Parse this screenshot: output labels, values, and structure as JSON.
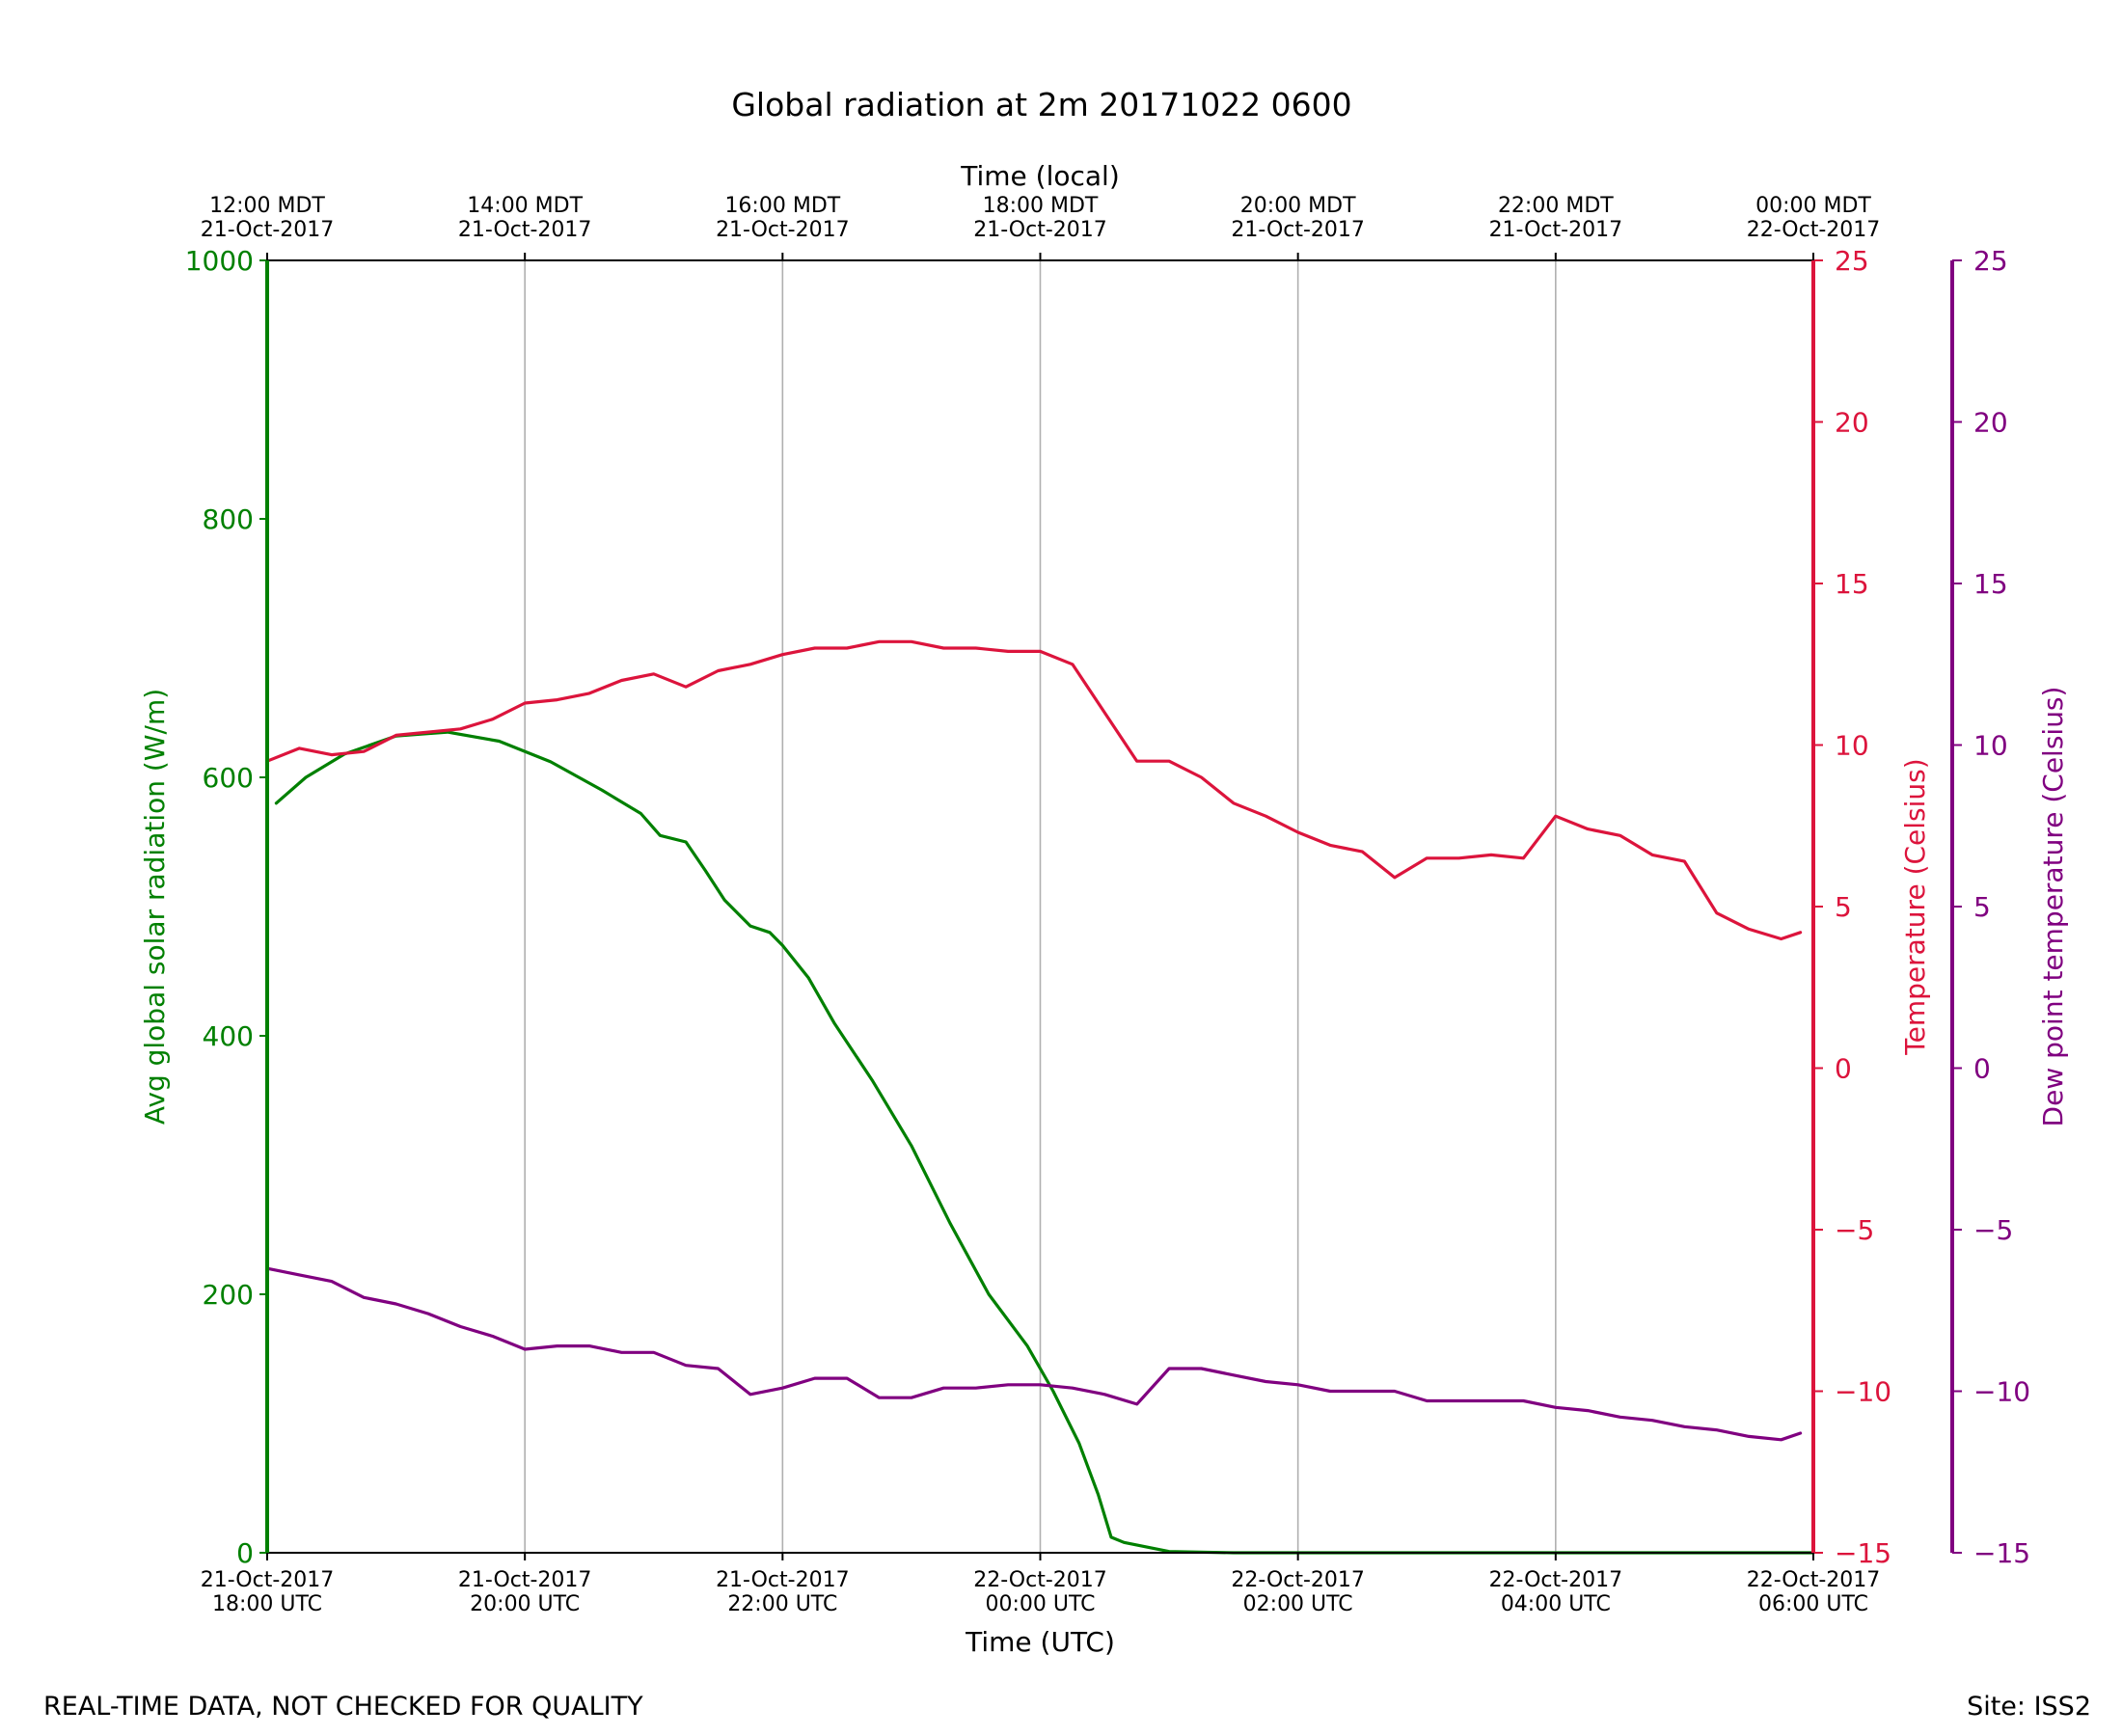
{
  "chart_data": {
    "type": "line",
    "title": "Global radiation at 2m 20171022 0600",
    "xlabel_bottom": "Time (UTC)",
    "xlabel_top": "Time (local)",
    "footer_left": "REAL-TIME DATA, NOT CHECKED FOR QUALITY",
    "footer_right": "Site: ISS2",
    "x_range_hours": [
      0,
      12
    ],
    "x_ticks_bottom": [
      {
        "hour": 0,
        "line1": "21-Oct-2017",
        "line2": "18:00 UTC"
      },
      {
        "hour": 2,
        "line1": "21-Oct-2017",
        "line2": "20:00 UTC"
      },
      {
        "hour": 4,
        "line1": "21-Oct-2017",
        "line2": "22:00 UTC"
      },
      {
        "hour": 6,
        "line1": "22-Oct-2017",
        "line2": "00:00 UTC"
      },
      {
        "hour": 8,
        "line1": "22-Oct-2017",
        "line2": "02:00 UTC"
      },
      {
        "hour": 10,
        "line1": "22-Oct-2017",
        "line2": "04:00 UTC"
      },
      {
        "hour": 12,
        "line1": "22-Oct-2017",
        "line2": "06:00 UTC"
      }
    ],
    "x_ticks_top": [
      {
        "hour": 0,
        "line1": "12:00 MDT",
        "line2": "21-Oct-2017"
      },
      {
        "hour": 2,
        "line1": "14:00 MDT",
        "line2": "21-Oct-2017"
      },
      {
        "hour": 4,
        "line1": "16:00 MDT",
        "line2": "21-Oct-2017"
      },
      {
        "hour": 6,
        "line1": "18:00 MDT",
        "line2": "21-Oct-2017"
      },
      {
        "hour": 8,
        "line1": "20:00 MDT",
        "line2": "21-Oct-2017"
      },
      {
        "hour": 10,
        "line1": "22:00 MDT",
        "line2": "21-Oct-2017"
      },
      {
        "hour": 12,
        "line1": "00:00 MDT",
        "line2": "22-Oct-2017"
      }
    ],
    "grid": "vertical",
    "axes": {
      "radiation": {
        "label": "Avg global solar radiation (W/m)",
        "range": [
          0,
          1000
        ],
        "ticks": [
          0,
          200,
          400,
          600,
          800,
          1000
        ],
        "color": "#008000",
        "side": "left"
      },
      "temperature": {
        "label": "Temperature (Celsius)",
        "range": [
          -15,
          25
        ],
        "ticks": [
          -15,
          -10,
          -5,
          0,
          5,
          10,
          15,
          20,
          25
        ],
        "color": "#dc143c",
        "side": "right"
      },
      "dewpoint": {
        "label": "Dew point temperature (Celsius)",
        "range": [
          -15,
          25
        ],
        "ticks": [
          -15,
          -10,
          -5,
          0,
          5,
          10,
          15,
          20,
          25
        ],
        "color": "#800080",
        "side": "right-outer"
      }
    },
    "tick_display": {
      "-15": "−15",
      "-10": "−10",
      "-5": "−5",
      "0": "0",
      "5": "5",
      "10": "10",
      "15": "15",
      "20": "20",
      "25": "25",
      "200": "200",
      "400": "400",
      "600": "600",
      "800": "800",
      "1000": "1000"
    },
    "series": [
      {
        "name": "Avg global solar radiation",
        "axis": "radiation",
        "color": "#008000",
        "x": [
          0.07,
          0.3,
          0.6,
          1.0,
          1.4,
          1.8,
          2.2,
          2.6,
          2.9,
          3.05,
          3.25,
          3.4,
          3.55,
          3.75,
          3.9,
          4.0,
          4.2,
          4.4,
          4.7,
          5.0,
          5.3,
          5.6,
          5.9,
          6.1,
          6.3,
          6.45,
          6.55,
          6.65,
          7.0,
          7.5,
          8.0,
          9.0,
          10.0,
          11.0,
          12.0
        ],
        "y": [
          580,
          600,
          618,
          632,
          635,
          628,
          612,
          590,
          572,
          555,
          550,
          528,
          505,
          485,
          480,
          470,
          445,
          410,
          365,
          315,
          255,
          200,
          160,
          125,
          85,
          45,
          12,
          8,
          1,
          0,
          0,
          0,
          0,
          0,
          0
        ]
      },
      {
        "name": "Temperature",
        "axis": "temperature",
        "color": "#dc143c",
        "x": [
          0.0,
          0.25,
          0.5,
          0.75,
          1.0,
          1.25,
          1.5,
          1.75,
          2.0,
          2.25,
          2.5,
          2.75,
          3.0,
          3.25,
          3.5,
          3.75,
          4.0,
          4.25,
          4.5,
          4.75,
          5.0,
          5.25,
          5.5,
          5.75,
          6.0,
          6.25,
          6.5,
          6.75,
          7.0,
          7.25,
          7.5,
          7.75,
          8.0,
          8.25,
          8.5,
          8.75,
          9.0,
          9.25,
          9.5,
          9.75,
          10.0,
          10.25,
          10.5,
          10.75,
          11.0,
          11.25,
          11.5,
          11.75,
          11.9
        ],
        "y": [
          9.5,
          9.9,
          9.7,
          9.8,
          10.3,
          10.4,
          10.5,
          10.8,
          11.3,
          11.4,
          11.6,
          12.0,
          12.2,
          11.8,
          12.3,
          12.5,
          12.8,
          13.0,
          13.0,
          13.2,
          13.2,
          13.0,
          13.0,
          12.9,
          12.9,
          12.5,
          11.0,
          9.5,
          9.5,
          9.0,
          8.2,
          7.8,
          7.3,
          6.9,
          6.7,
          5.9,
          6.5,
          6.5,
          6.6,
          6.5,
          7.8,
          7.4,
          7.2,
          6.6,
          6.4,
          4.8,
          4.3,
          4.0,
          4.2
        ]
      },
      {
        "name": "Dew point temperature",
        "axis": "dewpoint",
        "color": "#800080",
        "x": [
          0.0,
          0.25,
          0.5,
          0.75,
          1.0,
          1.25,
          1.5,
          1.75,
          2.0,
          2.25,
          2.5,
          2.75,
          3.0,
          3.25,
          3.5,
          3.75,
          4.0,
          4.25,
          4.5,
          4.75,
          5.0,
          5.25,
          5.5,
          5.75,
          6.0,
          6.25,
          6.5,
          6.75,
          7.0,
          7.25,
          7.5,
          7.75,
          8.0,
          8.25,
          8.5,
          8.75,
          9.0,
          9.25,
          9.5,
          9.75,
          10.0,
          10.25,
          10.5,
          10.75,
          11.0,
          11.25,
          11.5,
          11.75,
          11.9
        ],
        "y": [
          -6.2,
          -6.4,
          -6.6,
          -7.1,
          -7.3,
          -7.6,
          -8.0,
          -8.3,
          -8.7,
          -8.6,
          -8.6,
          -8.8,
          -8.8,
          -9.2,
          -9.3,
          -10.1,
          -9.9,
          -9.6,
          -9.6,
          -10.2,
          -10.2,
          -9.9,
          -9.9,
          -9.8,
          -9.8,
          -9.9,
          -10.1,
          -10.4,
          -9.3,
          -9.3,
          -9.5,
          -9.7,
          -9.8,
          -10.0,
          -10.0,
          -10.0,
          -10.3,
          -10.3,
          -10.3,
          -10.3,
          -10.5,
          -10.6,
          -10.8,
          -10.9,
          -11.1,
          -11.2,
          -11.4,
          -11.5,
          -11.3
        ]
      }
    ]
  }
}
